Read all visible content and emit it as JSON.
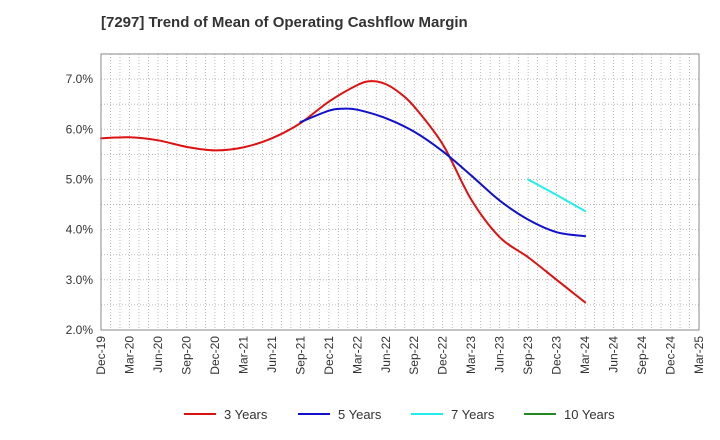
{
  "chart_data": {
    "type": "line",
    "title": "[7297]  Trend of Mean of Operating Cashflow Margin",
    "xlabel": "",
    "ylabel": "",
    "ylim": [
      2.0,
      7.5
    ],
    "y_ticks": [
      2.0,
      3.0,
      4.0,
      5.0,
      6.0,
      7.0
    ],
    "y_tick_labels": [
      "2.0%",
      "3.0%",
      "4.0%",
      "5.0%",
      "6.0%",
      "7.0%"
    ],
    "x_ticks": [
      "Dec-19",
      "Mar-20",
      "Jun-20",
      "Sep-20",
      "Dec-20",
      "Mar-21",
      "Jun-21",
      "Sep-21",
      "Dec-21",
      "Mar-22",
      "Jun-22",
      "Sep-22",
      "Dec-22",
      "Mar-23",
      "Jun-23",
      "Sep-23",
      "Dec-23",
      "Mar-24",
      "Jun-24",
      "Sep-24",
      "Dec-24",
      "Mar-25"
    ],
    "grid": true,
    "legend_position": "bottom",
    "series": [
      {
        "name": "3 Years",
        "color": "#dd1111",
        "points": [
          [
            0,
            5.82
          ],
          [
            1,
            5.84
          ],
          [
            2,
            5.78
          ],
          [
            3,
            5.65
          ],
          [
            4,
            5.58
          ],
          [
            5,
            5.64
          ],
          [
            6,
            5.82
          ],
          [
            7,
            6.12
          ],
          [
            8,
            6.55
          ],
          [
            9,
            6.88
          ],
          [
            9.5,
            6.96
          ],
          [
            10,
            6.9
          ],
          [
            10.5,
            6.72
          ],
          [
            11,
            6.45
          ],
          [
            12,
            5.7
          ],
          [
            13,
            4.6
          ],
          [
            14,
            3.85
          ],
          [
            15,
            3.45
          ],
          [
            16,
            3.0
          ],
          [
            17,
            2.55
          ]
        ]
      },
      {
        "name": "5 Years",
        "color": "#1111cc",
        "points": [
          [
            7,
            6.14
          ],
          [
            8,
            6.37
          ],
          [
            8.5,
            6.41
          ],
          [
            9,
            6.39
          ],
          [
            10,
            6.22
          ],
          [
            11,
            5.95
          ],
          [
            12,
            5.56
          ],
          [
            13,
            5.08
          ],
          [
            14,
            4.58
          ],
          [
            15,
            4.2
          ],
          [
            16,
            3.95
          ],
          [
            17,
            3.87
          ]
        ]
      },
      {
        "name": "7 Years",
        "color": "#22eeee",
        "points": [
          [
            15,
            5.0
          ],
          [
            16,
            4.69
          ],
          [
            17,
            4.37
          ]
        ]
      },
      {
        "name": "10 Years",
        "color": "#228822",
        "points": []
      }
    ]
  }
}
